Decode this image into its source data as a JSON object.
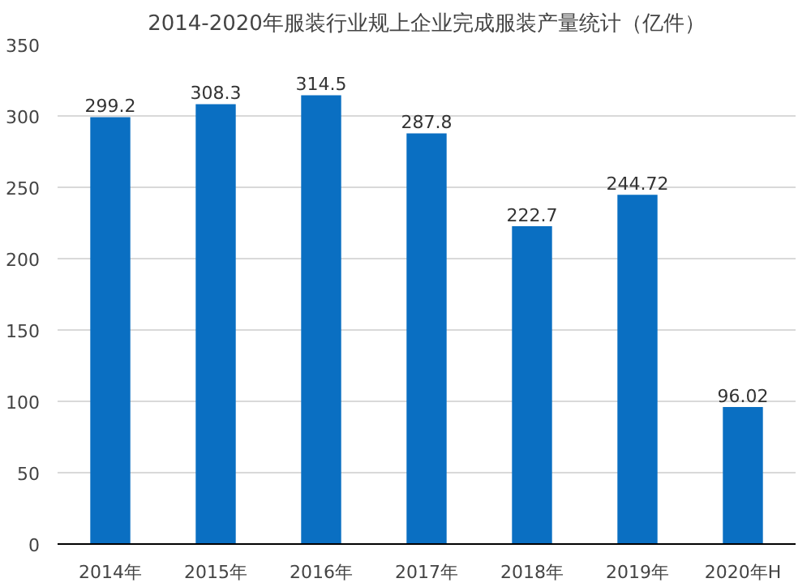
{
  "chart_data": {
    "type": "bar",
    "title": "2014-2020年服装行业规上企业完成服装产量统计（亿件）",
    "categories": [
      "2014年",
      "2015年",
      "2016年",
      "2017年",
      "2018年",
      "2019年",
      "2020年H"
    ],
    "values": [
      299.2,
      308.3,
      314.5,
      287.8,
      222.7,
      244.72,
      96.02
    ],
    "value_labels": [
      "299.2",
      "308.3",
      "314.5",
      "287.8",
      "222.7",
      "244.72",
      "96.02"
    ],
    "color": "#0a6fc2",
    "ylim": [
      0,
      350
    ],
    "yticks": [
      0,
      50,
      100,
      150,
      200,
      250,
      300,
      350
    ],
    "grid": "y"
  }
}
